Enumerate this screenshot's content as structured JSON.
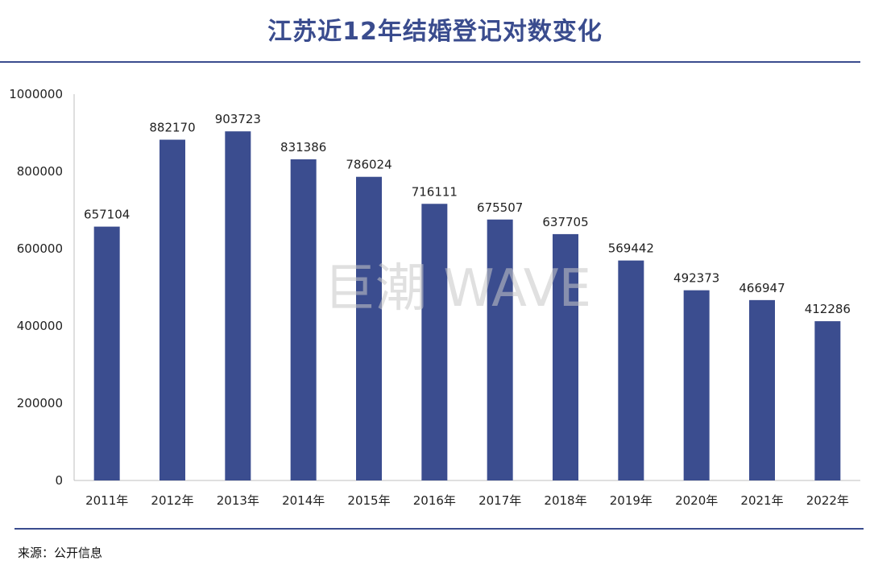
{
  "chart_data": {
    "type": "bar",
    "title": "江苏近12年结婚登记对数变化",
    "categories": [
      "2011年",
      "2012年",
      "2013年",
      "2014年",
      "2015年",
      "2016年",
      "2017年",
      "2018年",
      "2019年",
      "2020年",
      "2021年",
      "2022年"
    ],
    "values": [
      657104,
      882170,
      903723,
      831386,
      786024,
      716111,
      675507,
      637705,
      569442,
      492373,
      466947,
      412286
    ],
    "ylim": [
      0,
      1000000
    ],
    "yticks": [
      0,
      200000,
      400000,
      600000,
      800000,
      1000000
    ],
    "xlabel": "",
    "ylabel": "",
    "grid": false,
    "bar_color": "#3b4d8f"
  },
  "watermark": "巨潮 WAVE",
  "source": "来源：公开信息",
  "colors": {
    "accent": "#3a4c8e",
    "bar": "#3b4d8f"
  }
}
